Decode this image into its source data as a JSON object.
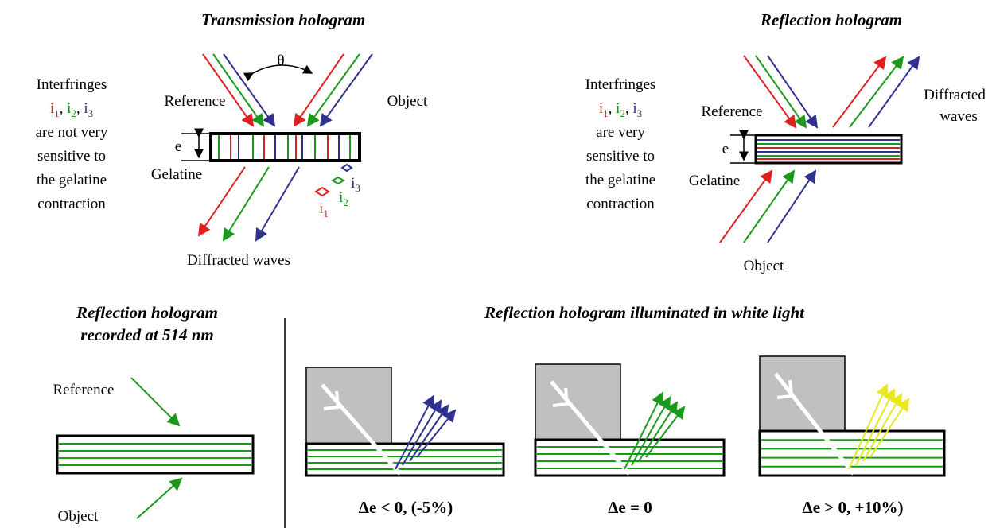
{
  "transmission": {
    "title": "Transmission hologram",
    "angle": "θ",
    "reference": "Reference",
    "object": "Object",
    "thickness": "e",
    "medium": "Gelatine",
    "output": "Diffracted waves",
    "markers": [
      {
        "letter": "i",
        "sub": "1"
      },
      {
        "letter": "i",
        "sub": "2"
      },
      {
        "letter": "i",
        "sub": "3"
      }
    ]
  },
  "transmission_note": {
    "heading": "Interfringes",
    "fringes": [
      {
        "letter": "i",
        "sub": "1"
      },
      {
        "letter": "i",
        "sub": "2"
      },
      {
        "letter": "i",
        "sub": "3"
      }
    ],
    "separator": ",",
    "lines": [
      "are not very",
      "sensitive to",
      "the gelatine",
      "contraction"
    ]
  },
  "reflection": {
    "title": "Reflection hologram",
    "reference": "Reference",
    "output": [
      "Diffracted",
      "waves"
    ],
    "thickness": "e",
    "medium": "Gelatine",
    "object": "Object"
  },
  "reflection_note": {
    "heading": "Interfringes",
    "fringes": [
      {
        "letter": "i",
        "sub": "1"
      },
      {
        "letter": "i",
        "sub": "2"
      },
      {
        "letter": "i",
        "sub": "3"
      }
    ],
    "separator": ",",
    "lines": [
      "are very",
      "sensitive to",
      "the gelatine",
      "contraction"
    ]
  },
  "recorded": {
    "title": [
      "Reflection hologram",
      "recorded at 514 nm"
    ],
    "reference": "Reference",
    "object": "Object"
  },
  "white_light": {
    "title": "Reflection hologram illuminated in white light",
    "cases": [
      "Δe < 0, (-5%)",
      "Δe = 0",
      "Δe > 0, +10%)"
    ]
  }
}
